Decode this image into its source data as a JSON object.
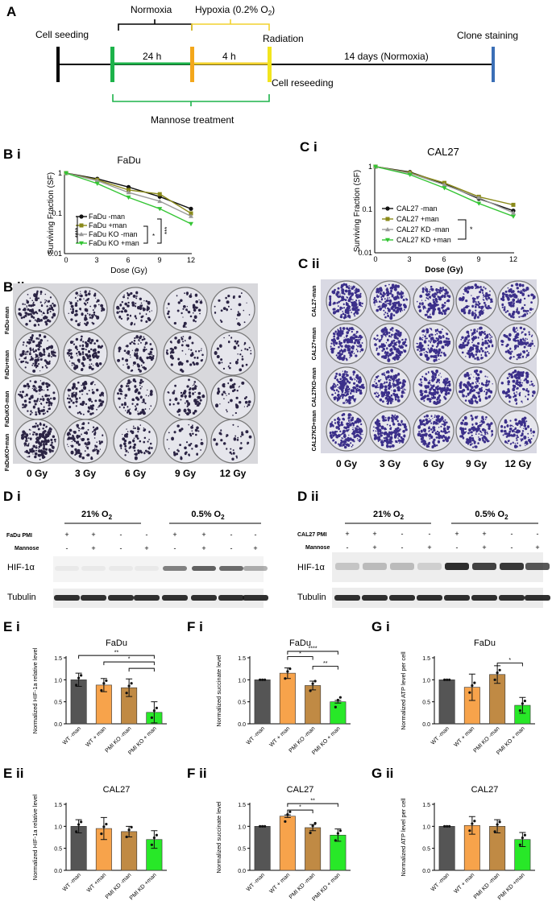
{
  "panels": {
    "A": "A",
    "Bi": "B i",
    "Bii": "B ii",
    "Ci": "C i",
    "Cii": "C ii",
    "Di": "D i",
    "Dii": "D ii",
    "Ei": "E i",
    "Eii": "E ii",
    "Fi": "F i",
    "Fii": "F ii",
    "Gi": "G i",
    "Gii": "G ii"
  },
  "timeline": {
    "normoxia": "Normoxia",
    "hypoxia": "Hypoxia (0.2% O",
    "hypoxia_sub": "2",
    "hypoxia_end": ")",
    "cell_seeding": "Cell seeding",
    "radiation": "Radiation",
    "clone_staining": "Clone staining",
    "h24": "24 h",
    "h4": "4 h",
    "days14": "14 days (Normoxia)",
    "cell_reseeding": "Cell reseeding",
    "mannose": "Mannose treatment",
    "colors": {
      "green": "#1db34a",
      "yellow": "#f2d22e",
      "orange": "#f3a71b",
      "blue": "#3b6fb6"
    }
  },
  "survival": {
    "ylabel": "Surviving Fraction (SF)",
    "xlabel": "Dose (Gy)",
    "yticks": [
      "1",
      "0.1",
      "0.01"
    ],
    "xticks": [
      "0",
      "3",
      "6",
      "9",
      "12"
    ],
    "fadu_stars": {
      "s1": "****",
      "s2": "*",
      "s3": "***"
    },
    "cal_stars": {
      "s1": "*"
    }
  },
  "colonies": {
    "fadu_rows": [
      "FaDu-man",
      "FaDu+man",
      "FaDuKO-man",
      "FaDuKO+man"
    ],
    "cal_rows": [
      "CAL27-man",
      "CAL27+man",
      "CAL27KD-man",
      "CAL27KD+man"
    ],
    "doses": [
      "0 Gy",
      "3 Gy",
      "6 Gy",
      "9 Gy",
      "12 Gy"
    ]
  },
  "western": {
    "o2_21": "21% O",
    "o2_05": "0.5% O",
    "o2_sub": "2",
    "fadu_row": "FaDu PMI",
    "cal_row": "CAL27 PMI",
    "mannose": "Mannose",
    "pmi_signs": [
      "+",
      "+",
      "-",
      "-",
      "+",
      "+",
      "-",
      "-"
    ],
    "man_signs": [
      "-",
      "+",
      "-",
      "+",
      "-",
      "+",
      "-",
      "+"
    ],
    "hif": "HIF-1α",
    "tubulin": "Tubulin"
  },
  "chart_data": [
    {
      "id": "Bi",
      "type": "line",
      "title": "FaDu",
      "xlabel": "Dose (Gy)",
      "ylabel": "Surviving Fraction (SF)",
      "yscale": "log",
      "ylim": [
        0.01,
        1
      ],
      "x": [
        0,
        3,
        6,
        9,
        12
      ],
      "series": [
        {
          "name": "FaDu -man",
          "color": "#111111",
          "marker": "circle",
          "values": [
            1,
            0.72,
            0.45,
            0.26,
            0.13
          ]
        },
        {
          "name": "FaDu +man",
          "color": "#8a8a1a",
          "marker": "square",
          "values": [
            1,
            0.68,
            0.38,
            0.3,
            0.1
          ]
        },
        {
          "name": "FaDu KO -man",
          "color": "#999999",
          "marker": "triangle",
          "values": [
            1,
            0.65,
            0.33,
            0.2,
            0.085
          ]
        },
        {
          "name": "FaDu KO +man",
          "color": "#34c534",
          "marker": "triangle-down",
          "values": [
            1,
            0.55,
            0.25,
            0.13,
            0.055
          ]
        }
      ]
    },
    {
      "id": "Ci",
      "type": "line",
      "title": "CAL27",
      "xlabel": "Dose (Gy)",
      "ylabel": "Surviving Fraction (SF)",
      "yscale": "log",
      "ylim": [
        0.01,
        1
      ],
      "x": [
        0,
        3,
        6,
        9,
        12
      ],
      "series": [
        {
          "name": "CAL27 -man",
          "color": "#111111",
          "marker": "circle",
          "values": [
            1,
            0.75,
            0.4,
            0.18,
            0.095
          ]
        },
        {
          "name": "CAL27 +man",
          "color": "#8a8a1a",
          "marker": "square",
          "values": [
            1,
            0.72,
            0.42,
            0.2,
            0.13
          ]
        },
        {
          "name": "CAL27 KD -man",
          "color": "#999999",
          "marker": "triangle",
          "values": [
            1,
            0.7,
            0.38,
            0.19,
            0.085
          ]
        },
        {
          "name": "CAL27 KD +man",
          "color": "#34c534",
          "marker": "triangle-down",
          "values": [
            1,
            0.65,
            0.32,
            0.14,
            0.07
          ]
        }
      ]
    },
    {
      "id": "Ei",
      "type": "bar",
      "title": "FaDu",
      "ylabel": "Normalized HIF-1a relative level",
      "ylim": [
        0,
        1.5
      ],
      "yticks": [
        "0.0",
        "0.5",
        "1.0",
        "1.5"
      ],
      "categories": [
        "WT -man",
        "WT + man",
        "PMI KO -man",
        "PMI KO + man"
      ],
      "values": [
        1.0,
        0.88,
        0.82,
        0.26
      ],
      "errors": [
        0.15,
        0.15,
        0.2,
        0.24
      ],
      "colors": [
        "#555555",
        "#f7a34b",
        "#c08a44",
        "#28e828"
      ],
      "sig": [
        {
          "a": 0,
          "b": 3,
          "label": "**"
        },
        {
          "a": 1,
          "b": 3,
          "label": "*"
        },
        {
          "a": 2,
          "b": 3,
          "label": ""
        }
      ]
    },
    {
      "id": "Eii",
      "type": "bar",
      "title": "CAL27",
      "ylabel": "Normalized HIF-1a relative level",
      "ylim": [
        0,
        1.5
      ],
      "yticks": [
        "0.0",
        "0.5",
        "1.0",
        "1.5"
      ],
      "categories": [
        "WT -man",
        "WT +man",
        "PMI KD -man",
        "PMI KD +man"
      ],
      "values": [
        1.0,
        0.95,
        0.88,
        0.7
      ],
      "errors": [
        0.15,
        0.25,
        0.12,
        0.2
      ],
      "colors": [
        "#555555",
        "#f7a34b",
        "#c08a44",
        "#28e828"
      ],
      "sig": []
    },
    {
      "id": "Fi",
      "type": "bar",
      "title": "FaDu",
      "ylabel": "Normalized succinate level",
      "ylim": [
        0,
        1.5
      ],
      "yticks": [
        "0.0",
        "0.5",
        "1.0",
        "1.5"
      ],
      "categories": [
        "WT -man",
        "WT + man",
        "PMI KO -man",
        "PMI KO + man"
      ],
      "values": [
        1.0,
        1.15,
        0.87,
        0.5
      ],
      "errors": [
        0,
        0.12,
        0.1,
        0.03
      ],
      "colors": [
        "#555555",
        "#f7a34b",
        "#c08a44",
        "#28e828"
      ],
      "sig": [
        {
          "a": 1,
          "b": 3,
          "label": "****"
        },
        {
          "a": 1,
          "b": 2,
          "label": "*"
        },
        {
          "a": 2,
          "b": 3,
          "label": "**"
        }
      ]
    },
    {
      "id": "Fii",
      "type": "bar",
      "title": "CAL27",
      "ylabel": "Normalized succinate level",
      "ylim": [
        0,
        1.5
      ],
      "yticks": [
        "0.0",
        "0.5",
        "1.0",
        "1.5"
      ],
      "categories": [
        "WT -man",
        "WT + man",
        "PMI KD -man",
        "PMI KD + man"
      ],
      "values": [
        1.0,
        1.23,
        0.97,
        0.8
      ],
      "errors": [
        0,
        0.03,
        0.07,
        0.14
      ],
      "colors": [
        "#555555",
        "#f7a34b",
        "#c08a44",
        "#28e828"
      ],
      "sig": [
        {
          "a": 1,
          "b": 3,
          "label": "**"
        },
        {
          "a": 1,
          "b": 2,
          "label": "*"
        }
      ]
    },
    {
      "id": "Gi",
      "type": "bar",
      "title": "FaDu",
      "ylabel": "Normalized ATP level per cell",
      "ylim": [
        0,
        1.5
      ],
      "yticks": [
        "0.0",
        "0.5",
        "1.0",
        "1.5"
      ],
      "categories": [
        "WT -man",
        "WT + man",
        "PMI KO -man",
        "PMI KO + man"
      ],
      "values": [
        1.0,
        0.83,
        1.12,
        0.42
      ],
      "errors": [
        0,
        0.3,
        0.2,
        0.18
      ],
      "colors": [
        "#555555",
        "#f7a34b",
        "#c08a44",
        "#28e828"
      ],
      "sig": [
        {
          "a": 2,
          "b": 3,
          "label": "*"
        }
      ]
    },
    {
      "id": "Gii",
      "type": "bar",
      "title": "CAL27",
      "ylabel": "Normalized ATP level per cell",
      "ylim": [
        0,
        1.5
      ],
      "yticks": [
        "0.0",
        "0.5",
        "1.0",
        "1.5"
      ],
      "categories": [
        "WT -man",
        "WT + man",
        "PMI KD -man",
        "PMI KD +man"
      ],
      "values": [
        1.0,
        1.02,
        1.0,
        0.7
      ],
      "errors": [
        0,
        0.2,
        0.15,
        0.16
      ],
      "colors": [
        "#555555",
        "#f7a34b",
        "#c08a44",
        "#28e828"
      ],
      "sig": []
    }
  ]
}
